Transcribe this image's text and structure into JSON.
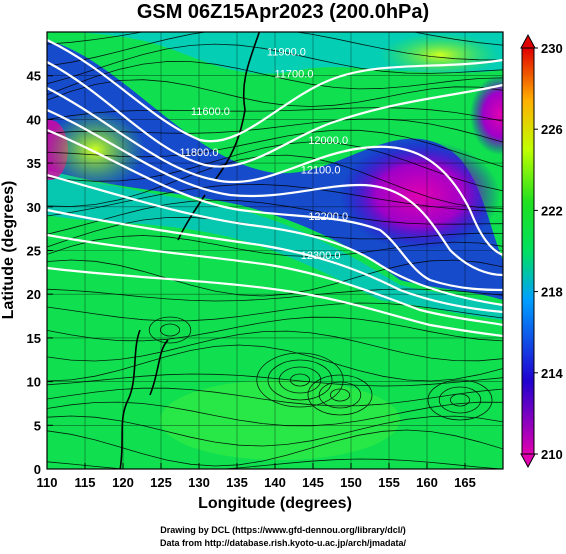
{
  "title": "GSM 06Z15Apr2023 (200.0hPa)",
  "footer": {
    "line1": "Drawing by DCL (https://www.gfd-dennou.org/library/dcl/)",
    "line2": "Data from http://database.rish.kyoto-u.ac.jp/arch/jmadata/"
  },
  "chart_data": {
    "type": "heatmap",
    "xlabel": "Longitude (degrees)",
    "ylabel": "Latitude (degrees)",
    "xlim": [
      110,
      170
    ],
    "ylim": [
      0,
      50
    ],
    "x_ticks": [
      "110",
      "115",
      "120",
      "125",
      "130",
      "135",
      "140",
      "145",
      "150",
      "155",
      "160",
      "165"
    ],
    "y_ticks": [
      "0",
      "5",
      "10",
      "15",
      "20",
      "25",
      "30",
      "35",
      "40",
      "45"
    ],
    "colorbar": {
      "range": [
        210,
        230
      ],
      "tick_labels": [
        "210",
        "214",
        "218",
        "222",
        "226",
        "230"
      ],
      "colors": [
        "#e000b0",
        "#2000d0",
        "#00a0ff",
        "#00e060",
        "#20e020",
        "#c0ff00",
        "#ffb000",
        "#e00000"
      ]
    },
    "contours": [
      {
        "label": "11600.0",
        "lon": 131.5,
        "lat": 40.5
      },
      {
        "label": "11700.0",
        "lon": 142.5,
        "lat": 44.8
      },
      {
        "label": "11800.0",
        "lon": 130.0,
        "lat": 35.8
      },
      {
        "label": "11900.0",
        "lon": 141.5,
        "lat": 47.3
      },
      {
        "label": "12000.0",
        "lon": 147.0,
        "lat": 37.2
      },
      {
        "label": "12100.0",
        "lon": 146.0,
        "lat": 33.8
      },
      {
        "label": "12200.0",
        "lon": 147.0,
        "lat": 28.5
      },
      {
        "label": "12300.0",
        "lon": 146.0,
        "lat": 24.0
      }
    ]
  }
}
